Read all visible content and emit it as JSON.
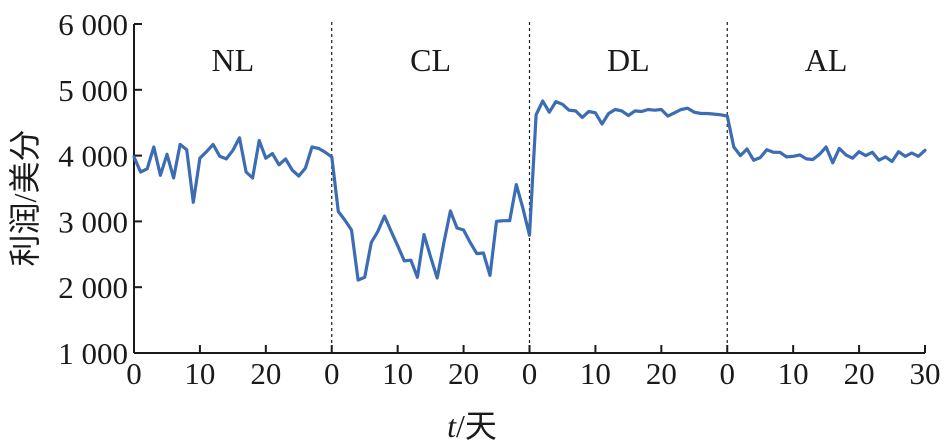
{
  "chart_data": {
    "type": "line",
    "ylabel": "利润/美分",
    "xlabel_italic": "t",
    "xlabel_rest": "/天",
    "ylim": [
      1000,
      6000
    ],
    "yticks": [
      1000,
      2000,
      3000,
      4000,
      5000,
      6000
    ],
    "ytick_labels": [
      "1 000",
      "2 000",
      "3 000",
      "4 000",
      "5 000",
      "6 000"
    ],
    "panel_x_range": [
      0,
      30
    ],
    "grid": false,
    "line_color": "#3c6db4",
    "divider_style": "dashed",
    "panels": [
      {
        "label": "NL",
        "xtick_labels": [
          "0",
          "10",
          "20"
        ],
        "x": [
          0,
          1,
          2,
          3,
          4,
          5,
          6,
          7,
          8,
          9,
          10,
          11,
          12,
          13,
          14,
          15,
          16,
          17,
          18,
          19,
          20,
          21,
          22,
          23,
          24,
          25,
          26,
          27,
          28,
          29,
          30
        ],
        "values": [
          3980,
          3750,
          3800,
          4130,
          3700,
          4020,
          3660,
          4170,
          4090,
          3290,
          3960,
          4060,
          4170,
          3990,
          3950,
          4080,
          4270,
          3750,
          3660,
          4230,
          3960,
          4030,
          3860,
          3950,
          3780,
          3690,
          3810,
          4130,
          4110,
          4050,
          3980
        ]
      },
      {
        "label": "CL",
        "xtick_labels": [
          "0",
          "10",
          "20"
        ],
        "x": [
          0,
          1,
          2,
          3,
          4,
          5,
          6,
          7,
          8,
          9,
          10,
          11,
          12,
          13,
          14,
          15,
          16,
          17,
          18,
          19,
          20,
          21,
          22,
          23,
          24,
          25,
          26,
          27,
          28,
          29,
          30
        ],
        "values": [
          3980,
          3150,
          3020,
          2870,
          2110,
          2150,
          2680,
          2850,
          3080,
          2850,
          2630,
          2400,
          2410,
          2150,
          2800,
          2460,
          2140,
          2670,
          3160,
          2900,
          2870,
          2680,
          2510,
          2520,
          2180,
          3000,
          3010,
          3010,
          3560,
          3200,
          2790
        ]
      },
      {
        "label": "DL",
        "xtick_labels": [
          "0",
          "10",
          "20"
        ],
        "x": [
          0,
          1,
          2,
          3,
          4,
          5,
          6,
          7,
          8,
          9,
          10,
          11,
          12,
          13,
          14,
          15,
          16,
          17,
          18,
          19,
          20,
          21,
          22,
          23,
          24,
          25,
          26,
          27,
          28,
          29,
          30
        ],
        "values": [
          2790,
          4620,
          4830,
          4660,
          4820,
          4780,
          4690,
          4680,
          4580,
          4670,
          4650,
          4480,
          4640,
          4700,
          4680,
          4610,
          4680,
          4670,
          4700,
          4690,
          4700,
          4600,
          4650,
          4700,
          4720,
          4660,
          4640,
          4640,
          4630,
          4620,
          4600
        ]
      },
      {
        "label": "AL",
        "xtick_labels": [
          "0",
          "10",
          "20",
          "30"
        ],
        "x": [
          0,
          1,
          2,
          3,
          4,
          5,
          6,
          7,
          8,
          9,
          10,
          11,
          12,
          13,
          14,
          15,
          16,
          17,
          18,
          19,
          20,
          21,
          22,
          23,
          24,
          25,
          26,
          27,
          28,
          29,
          30
        ],
        "values": [
          4600,
          4130,
          4000,
          4100,
          3930,
          3970,
          4090,
          4050,
          4050,
          3980,
          3990,
          4010,
          3950,
          3940,
          4020,
          4130,
          3890,
          4110,
          4010,
          3960,
          4060,
          4000,
          4050,
          3930,
          3980,
          3910,
          4060,
          3990,
          4040,
          3990,
          4080
        ]
      }
    ]
  }
}
